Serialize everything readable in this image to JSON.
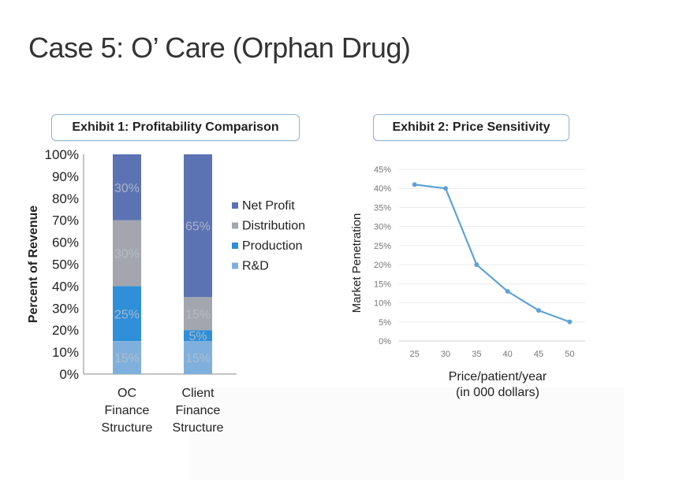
{
  "slide": {
    "title": "Case 5: O’ Care (Orphan Drug)"
  },
  "exhibit1": {
    "label": "Exhibit 1: Profitability Comparison"
  },
  "exhibit2": {
    "label": "Exhibit 2: Price Sensitivity"
  },
  "chart_data": [
    {
      "type": "bar",
      "stacked": true,
      "title": "Exhibit 1: Profitability Comparison",
      "ylabel": "Percent of Revenue",
      "xlabel": "",
      "ylim": [
        0,
        100
      ],
      "yticks": [
        "0%",
        "10%",
        "20%",
        "30%",
        "40%",
        "50%",
        "60%",
        "70%",
        "80%",
        "90%",
        "100%"
      ],
      "categories": [
        [
          "OC",
          "Finance",
          "Structure"
        ],
        [
          "Client",
          "Finance",
          "Structure"
        ]
      ],
      "series": [
        {
          "name": "R&D",
          "values": [
            15,
            15
          ],
          "labels": [
            "15%",
            "15%"
          ],
          "color": "#7fb0dd"
        },
        {
          "name": "Production",
          "values": [
            25,
            5
          ],
          "labels": [
            "25%",
            "5%"
          ],
          "color": "#2f8fd8"
        },
        {
          "name": "Distribution",
          "values": [
            30,
            15
          ],
          "labels": [
            "30%",
            "15%"
          ],
          "color": "#a3a6ae"
        },
        {
          "name": "Net Profit",
          "values": [
            30,
            65
          ],
          "labels": [
            "30%",
            "65%"
          ],
          "color": "#5b73b3"
        }
      ],
      "legend_order": [
        "Net Profit",
        "Distribution",
        "Production",
        "R&D"
      ],
      "legend": "right"
    },
    {
      "type": "line",
      "title": "Exhibit 2: Price Sensitivity",
      "xlabel_lines": [
        "Price/patient/year",
        "(in 000 dollars)"
      ],
      "ylabel": "Market Penetration",
      "x": [
        25,
        30,
        35,
        40,
        45,
        50
      ],
      "xticks": [
        "25",
        "30",
        "35",
        "40",
        "45",
        "50"
      ],
      "series": [
        {
          "name": "Market Penetration",
          "values": [
            41,
            40,
            20,
            13,
            8,
            5
          ],
          "color": "#5fa3d6"
        }
      ],
      "ylim": [
        0,
        45
      ],
      "yticks": [
        "0%",
        "5%",
        "10%",
        "15%",
        "20%",
        "25%",
        "30%",
        "35%",
        "40%",
        "45%"
      ],
      "grid": true
    }
  ]
}
